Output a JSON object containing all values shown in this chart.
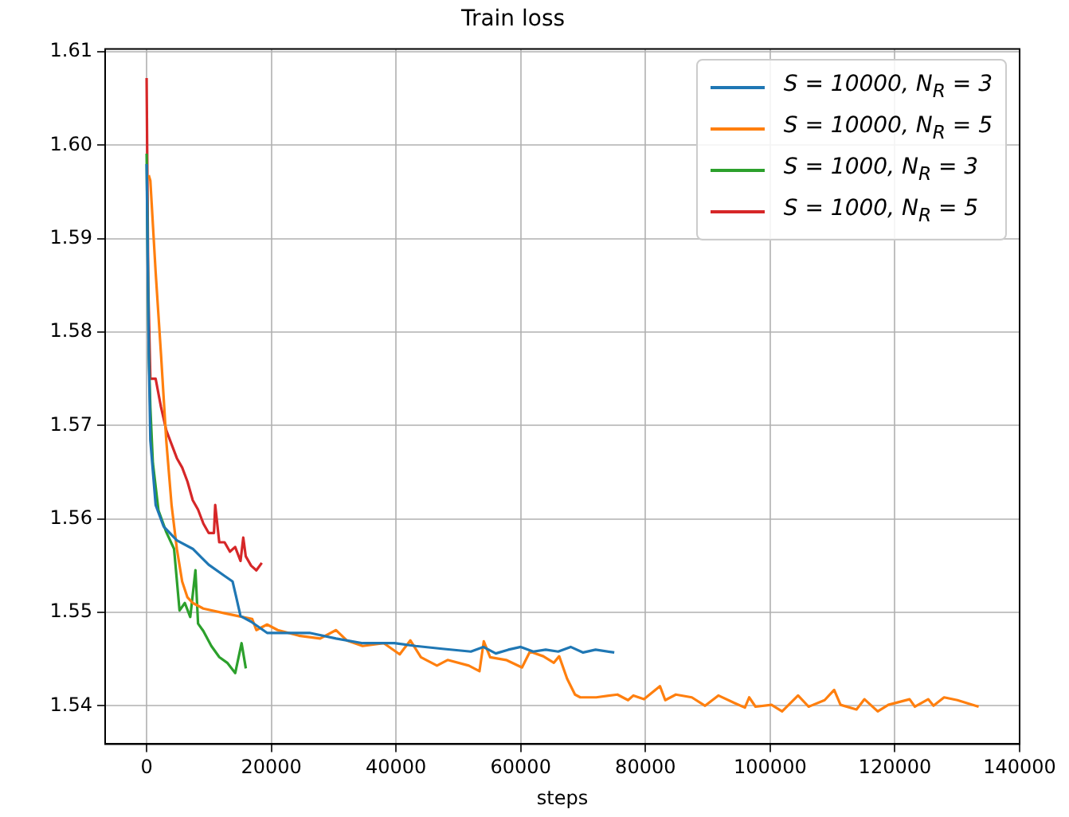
{
  "chart_data": {
    "type": "line",
    "title": "Train loss",
    "xlabel": "steps",
    "xlim": [
      -6650,
      140000
    ],
    "xticks": [
      0,
      20000,
      40000,
      60000,
      80000,
      100000,
      120000,
      140000
    ],
    "ylim": [
      1.5359,
      1.6103
    ],
    "yticks": [
      1.54,
      1.55,
      1.56,
      1.57,
      1.58,
      1.59,
      {
        "value": 1.6,
        "label": "1.60"
      },
      1.61
    ],
    "grid": true,
    "legend": "top right",
    "series": [
      {
        "name": "S = 10000, N$_{R}$ = 3",
        "color": "#1f77b4",
        "x": [
          0,
          350,
          600,
          1450,
          2720,
          4850,
          7400,
          9950,
          12500,
          13790,
          14380,
          15060,
          16760,
          19320,
          22720,
          26130,
          30380,
          34640,
          39740,
          43150,
          47400,
          52000,
          54000,
          56000,
          58000,
          60000,
          62000,
          64000,
          66000,
          68000,
          70000,
          72000,
          75000
        ],
        "values": [
          1.598,
          1.5777,
          1.5684,
          1.5615,
          1.5592,
          1.5577,
          1.5568,
          1.5551,
          1.5539,
          1.5533,
          1.5516,
          1.5496,
          1.549,
          1.5478,
          1.5478,
          1.5478,
          1.5472,
          1.5467,
          1.5467,
          1.5464,
          1.5461,
          1.5458,
          1.5463,
          1.5456,
          1.546,
          1.5463,
          1.5458,
          1.546,
          1.5458,
          1.5463,
          1.5457,
          1.546,
          1.5457
        ]
      },
      {
        "name": "S = 10000, N$_{R}$ = 5",
        "color": "#ff7f0e",
        "x": [
          340,
          600,
          1450,
          2300,
          3150,
          4000,
          4850,
          5700,
          6550,
          7400,
          9100,
          12500,
          14640,
          16930,
          17600,
          19320,
          21020,
          24420,
          27830,
          30380,
          32080,
          34640,
          38040,
          40590,
          42290,
          43990,
          46560,
          48270,
          51670,
          53380,
          54070,
          55090,
          57650,
          60200,
          61480,
          63610,
          65310,
          66160,
          67430,
          68700,
          69550,
          72100,
          75500,
          77210,
          78060,
          79760,
          82320,
          83170,
          84870,
          87430,
          89560,
          91690,
          94250,
          95950,
          96630,
          97650,
          100210,
          101910,
          104470,
          106170,
          108730,
          110260,
          111280,
          113840,
          115120,
          117250,
          118950,
          122360,
          123210,
          125340,
          126190,
          127890,
          130020,
          133430
        ],
        "values": [
          1.5968,
          1.5962,
          1.5864,
          1.5777,
          1.5684,
          1.5615,
          1.5568,
          1.5533,
          1.5516,
          1.551,
          1.5504,
          1.5499,
          1.5496,
          1.5493,
          1.5481,
          1.5487,
          1.5481,
          1.5475,
          1.5472,
          1.5481,
          1.547,
          1.5464,
          1.5467,
          1.5455,
          1.547,
          1.5452,
          1.5443,
          1.5449,
          1.5443,
          1.5437,
          1.5469,
          1.5452,
          1.5449,
          1.5441,
          1.5458,
          1.5453,
          1.5446,
          1.5453,
          1.5429,
          1.5412,
          1.5409,
          1.5409,
          1.5412,
          1.5406,
          1.5411,
          1.5407,
          1.5421,
          1.5406,
          1.5412,
          1.5409,
          1.54,
          1.5411,
          1.5403,
          1.5398,
          1.5409,
          1.5399,
          1.5401,
          1.5394,
          1.5411,
          1.5399,
          1.5406,
          1.5417,
          1.5401,
          1.5396,
          1.5407,
          1.5394,
          1.5401,
          1.5407,
          1.5399,
          1.5407,
          1.54,
          1.5409,
          1.5406,
          1.5399
        ]
      },
      {
        "name": "S = 1000, N$_{R}$ = 3",
        "color": "#2ca02c",
        "x": [
          0,
          350,
          600,
          1000,
          1900,
          3150,
          4400,
          5280,
          6130,
          7000,
          7830,
          8250,
          9100,
          10380,
          11660,
          12930,
          14210,
          15230,
          15910
        ],
        "values": [
          1.5991,
          1.5777,
          1.5719,
          1.566,
          1.5609,
          1.5586,
          1.5568,
          1.5502,
          1.551,
          1.5495,
          1.5545,
          1.5488,
          1.548,
          1.5464,
          1.5452,
          1.5446,
          1.5435,
          1.5467,
          1.544
        ]
      },
      {
        "name": "S = 1000, N$_{R}$ = 5",
        "color": "#d62728",
        "x": [
          0,
          255,
          600,
          1450,
          2300,
          3150,
          4000,
          4850,
          5700,
          6550,
          7400,
          8250,
          9100,
          9950,
          10800,
          11000,
          11650,
          12500,
          13360,
          14200,
          15060,
          15500,
          15900,
          16760,
          17600,
          18470
        ],
        "values": [
          1.6072,
          1.585,
          1.575,
          1.575,
          1.572,
          1.5695,
          1.568,
          1.5665,
          1.5655,
          1.564,
          1.562,
          1.561,
          1.5595,
          1.5585,
          1.5585,
          1.5615,
          1.5575,
          1.5575,
          1.5565,
          1.557,
          1.5555,
          1.558,
          1.556,
          1.555,
          1.5545,
          1.5553
        ]
      }
    ]
  }
}
